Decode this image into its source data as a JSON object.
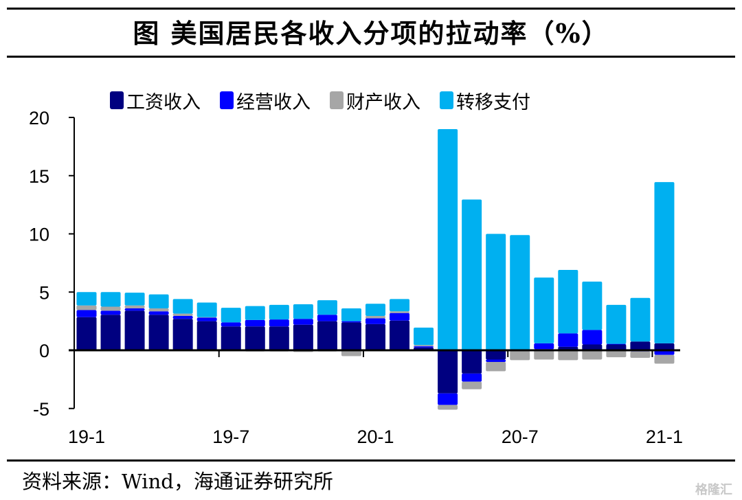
{
  "header": {
    "title": "图  美国居民各收入分项的拉动率（%）"
  },
  "footer": {
    "source": "资料来源：Wind，海通证券研究所",
    "watermark": "格隆汇"
  },
  "chart_data": {
    "type": "bar",
    "stacked": true,
    "title": "图  美国居民各收入分项的拉动率（%）",
    "xlabel": "",
    "ylabel": "",
    "ylim": [
      -5,
      20
    ],
    "yticks": [
      "20",
      "15",
      "10",
      "5",
      "0",
      "-5"
    ],
    "ytick_values": [
      20,
      15,
      10,
      5,
      0,
      -5
    ],
    "xtick_labels": [
      "19-1",
      "19-7",
      "20-1",
      "20-7",
      "21-1"
    ],
    "grid": false,
    "legend_position": "top",
    "categories": [
      "19-1",
      "19-2",
      "19-3",
      "19-4",
      "19-5",
      "19-6",
      "19-7",
      "19-8",
      "19-9",
      "19-10",
      "19-11",
      "19-12",
      "20-1",
      "20-2",
      "20-3",
      "20-4",
      "20-5",
      "20-6",
      "20-7",
      "20-8",
      "20-9",
      "20-10",
      "20-11",
      "20-12",
      "21-1"
    ],
    "series": [
      {
        "name": "工资收入",
        "color": "#000080",
        "values": [
          2.85,
          3.05,
          3.4,
          3.05,
          2.7,
          2.5,
          2.05,
          2.05,
          2.05,
          2.2,
          2.5,
          2.4,
          2.25,
          2.55,
          0.25,
          -3.7,
          -2.0,
          -0.8,
          -0.05,
          0.1,
          0.3,
          0.5,
          0.5,
          0.75,
          0.6
        ]
      },
      {
        "name": "经营收入",
        "color": "#0000FF",
        "values": [
          0.6,
          0.35,
          0.2,
          0.3,
          0.25,
          0.3,
          0.35,
          0.55,
          0.6,
          0.5,
          0.55,
          0.1,
          0.5,
          0.65,
          0.1,
          -1.0,
          -0.7,
          -0.2,
          0.05,
          0.5,
          1.15,
          1.25,
          0.05,
          -0.1,
          -0.4
        ]
      },
      {
        "name": "财产收入",
        "color": "#A6A6A6",
        "values": [
          0.4,
          0.35,
          0.25,
          0.25,
          0.2,
          0.05,
          0.0,
          -0.1,
          -0.1,
          -0.15,
          -0.1,
          -0.5,
          0.2,
          0.15,
          0.1,
          -0.4,
          -0.65,
          -0.8,
          -0.8,
          -0.8,
          -0.85,
          -0.8,
          -0.6,
          -0.55,
          -0.75
        ]
      },
      {
        "name": "转移支付",
        "color": "#00B0F0",
        "values": [
          1.15,
          1.25,
          1.1,
          1.2,
          1.25,
          1.25,
          1.25,
          1.2,
          1.25,
          1.25,
          1.25,
          1.1,
          1.05,
          1.05,
          1.5,
          19.0,
          12.95,
          10.0,
          9.85,
          5.65,
          5.45,
          4.15,
          3.35,
          3.75,
          13.85
        ]
      }
    ]
  }
}
